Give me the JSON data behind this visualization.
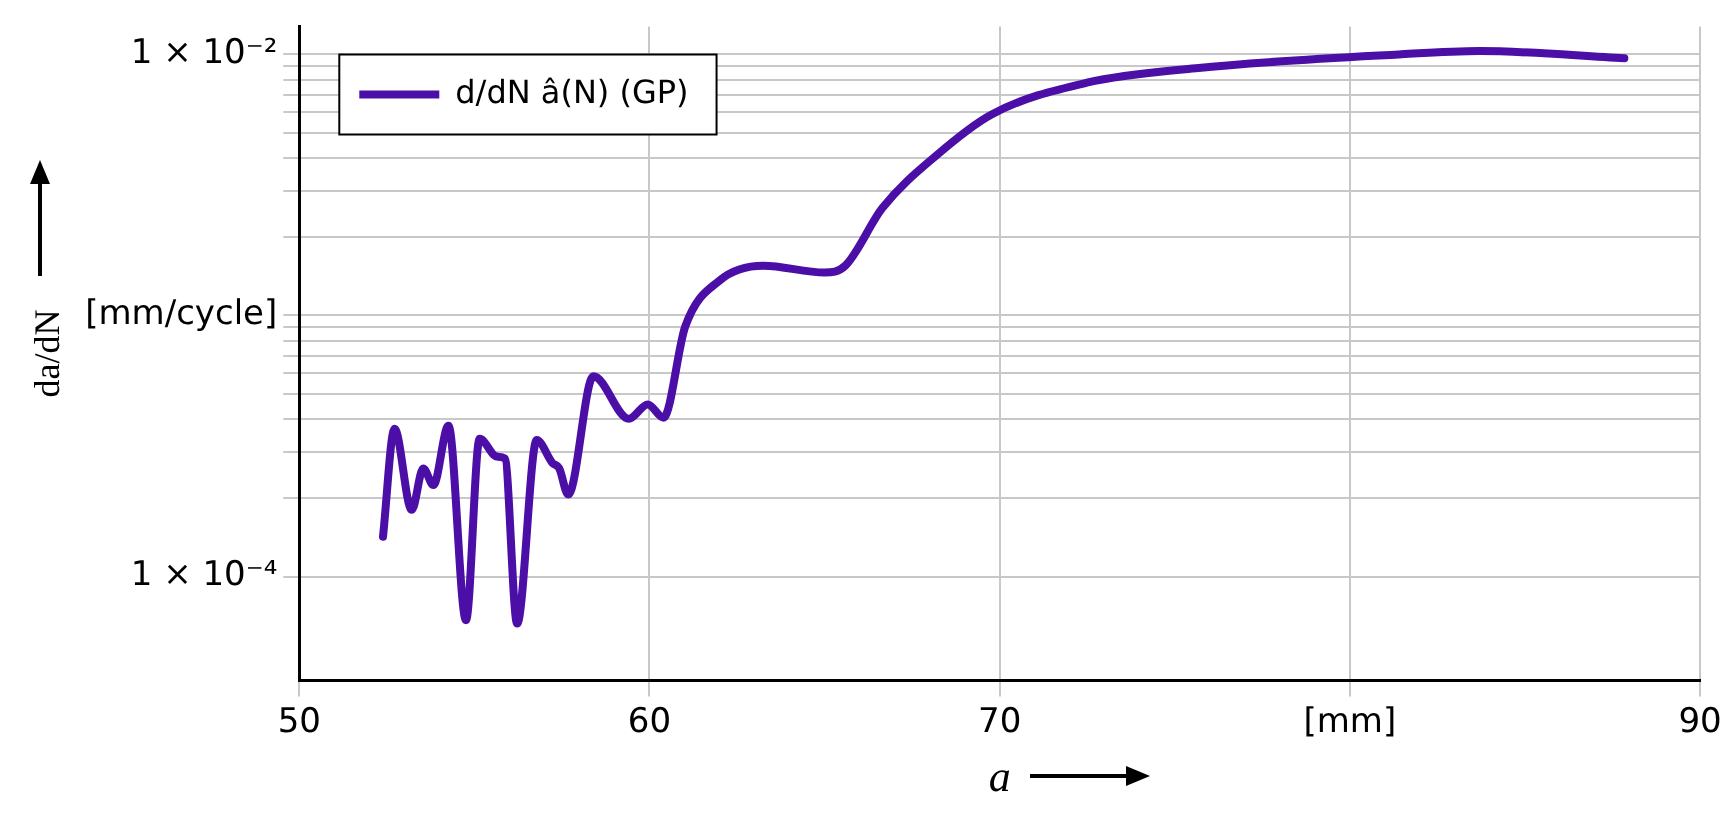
{
  "chart_data": {
    "type": "line",
    "xlabel": "a",
    "ylabel": "da/dN",
    "log": "y",
    "grid": true,
    "legend": "top left",
    "marker": "none",
    "line_style": "solid",
    "xlim": [
      50,
      90
    ],
    "ylim": [
      4e-05,
      0.0128
    ],
    "xticks": [
      50,
      60,
      70,
      {
        "value": 80,
        "label": "[mm]"
      },
      90
    ],
    "yticks": [
      {
        "value": 0.0001,
        "label": "1 × 10⁻⁴"
      },
      {
        "value": 0.0002,
        "label": null
      },
      {
        "value": 0.0003,
        "label": null
      },
      {
        "value": 0.0004,
        "label": null
      },
      {
        "value": 0.0005,
        "label": null
      },
      {
        "value": 0.0006,
        "label": null
      },
      {
        "value": 0.0007,
        "label": null
      },
      {
        "value": 0.0008,
        "label": null
      },
      {
        "value": 0.0009,
        "label": null
      },
      {
        "value": 0.001,
        "label": "[mm/cycle]"
      },
      {
        "value": 0.002,
        "label": null
      },
      {
        "value": 0.003,
        "label": null
      },
      {
        "value": 0.004,
        "label": null
      },
      {
        "value": 0.005,
        "label": null
      },
      {
        "value": 0.006,
        "label": null
      },
      {
        "value": 0.007,
        "label": null
      },
      {
        "value": 0.008,
        "label": null
      },
      {
        "value": 0.009,
        "label": null
      },
      {
        "value": 0.01,
        "label": "1 × 10⁻²"
      }
    ],
    "series": [
      {
        "name": "d/dN â(N) (GP)",
        "color": "#4b0ea6",
        "x": [
          52.39,
          52.72,
          53.21,
          53.54,
          53.83,
          54.26,
          54.76,
          55.15,
          55.64,
          55.87,
          56.22,
          56.78,
          57.23,
          57.42,
          57.68,
          58.4,
          59.41,
          59.95,
          60.4,
          61.02,
          62.0,
          63.25,
          65.0,
          65.59,
          66.65,
          68.2,
          69.77,
          72.49,
          75.6,
          81.4,
          83.7,
          87.84
        ],
        "values": [
          0.000142,
          0.000368,
          0.00018,
          0.000259,
          0.000224,
          0.000378,
          6.8e-05,
          0.000337,
          0.000288,
          0.000283,
          6.6e-05,
          0.000333,
          0.000272,
          0.00026,
          0.000206,
          0.000585,
          0.000402,
          0.000456,
          0.000406,
          0.000906,
          0.00136,
          0.00155,
          0.00146,
          0.00155,
          0.00258,
          0.00411,
          0.00589,
          0.00779,
          0.00885,
          0.01,
          0.0103,
          0.00966
        ]
      }
    ]
  }
}
